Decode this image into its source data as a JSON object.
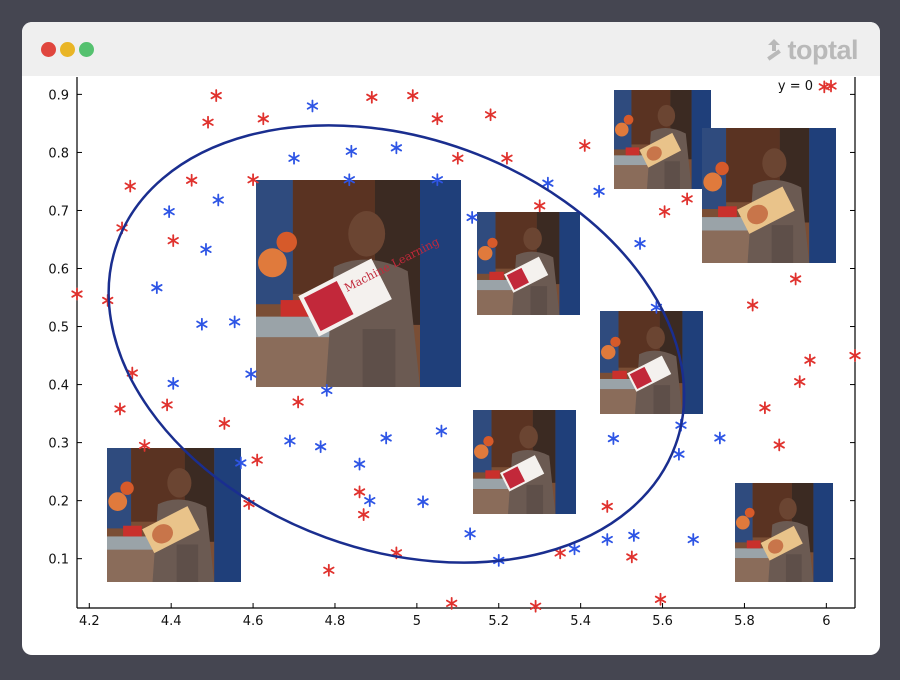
{
  "window": {
    "brand": "toptal",
    "brand_icon": "toptal-logo-icon",
    "traffic_lights": [
      {
        "name": "close-dot",
        "color": "#e0463e"
      },
      {
        "name": "minimize-dot",
        "color": "#e9b526"
      },
      {
        "name": "maximize-dot",
        "color": "#55c16f"
      }
    ]
  },
  "chart_data": {
    "type": "scatter",
    "xlim": [
      4.17,
      6.07
    ],
    "ylim": [
      0.015,
      0.93
    ],
    "xticks": [
      "4.2",
      "4.4",
      "4.6",
      "4.8",
      "5",
      "5.2",
      "5.4",
      "5.6",
      "5.8",
      "6"
    ],
    "xtick_values": [
      4.2,
      4.4,
      4.6,
      4.8,
      5.0,
      5.2,
      5.4,
      5.6,
      5.8,
      6.0
    ],
    "yticks": [
      "0.1",
      "0.2",
      "0.3",
      "0.4",
      "0.5",
      "0.6",
      "0.7",
      "0.8",
      "0.9"
    ],
    "ytick_values": [
      0.1,
      0.2,
      0.3,
      0.4,
      0.5,
      0.6,
      0.7,
      0.8,
      0.9
    ],
    "legend": {
      "label": "y = 0",
      "color": "#e0322e",
      "marker": "asterisk",
      "position": "top-right"
    },
    "grid": false,
    "series": [
      {
        "name": "y = 0",
        "color": "#e0322e",
        "marker": "asterisk",
        "points": [
          [
            4.17,
            0.556
          ],
          [
            4.245,
            0.545
          ],
          [
            4.275,
            0.358
          ],
          [
            4.28,
            0.67
          ],
          [
            4.3,
            0.742
          ],
          [
            4.305,
            0.42
          ],
          [
            4.335,
            0.295
          ],
          [
            4.39,
            0.365
          ],
          [
            4.405,
            0.648
          ],
          [
            4.45,
            0.752
          ],
          [
            4.49,
            0.852
          ],
          [
            4.51,
            0.898
          ],
          [
            4.53,
            0.333
          ],
          [
            4.59,
            0.195
          ],
          [
            4.6,
            0.753
          ],
          [
            4.61,
            0.27
          ],
          [
            4.625,
            0.858
          ],
          [
            4.71,
            0.37
          ],
          [
            4.785,
            0.08
          ],
          [
            4.86,
            0.215
          ],
          [
            4.87,
            0.176
          ],
          [
            4.89,
            0.895
          ],
          [
            4.95,
            0.11
          ],
          [
            4.99,
            0.898
          ],
          [
            5.05,
            0.858
          ],
          [
            5.085,
            0.023
          ],
          [
            5.1,
            0.79
          ],
          [
            5.18,
            0.865
          ],
          [
            5.22,
            0.79
          ],
          [
            5.29,
            0.018
          ],
          [
            5.3,
            0.708
          ],
          [
            5.35,
            0.11
          ],
          [
            5.41,
            0.812
          ],
          [
            5.465,
            0.19
          ],
          [
            5.525,
            0.103
          ],
          [
            5.595,
            0.03
          ],
          [
            5.605,
            0.698
          ],
          [
            5.66,
            0.72
          ],
          [
            5.82,
            0.537
          ],
          [
            5.85,
            0.36
          ],
          [
            5.885,
            0.296
          ],
          [
            5.925,
            0.582
          ],
          [
            5.935,
            0.405
          ],
          [
            5.96,
            0.442
          ],
          [
            6.07,
            0.45
          ],
          [
            5.995,
            0.913
          ]
        ]
      },
      {
        "name": "",
        "color": "#2e55e5",
        "marker": "asterisk",
        "points": [
          [
            4.365,
            0.567
          ],
          [
            4.395,
            0.698
          ],
          [
            4.405,
            0.402
          ],
          [
            4.475,
            0.504
          ],
          [
            4.485,
            0.633
          ],
          [
            4.515,
            0.718
          ],
          [
            4.555,
            0.508
          ],
          [
            4.57,
            0.265
          ],
          [
            4.595,
            0.418
          ],
          [
            4.69,
            0.303
          ],
          [
            4.7,
            0.79
          ],
          [
            4.745,
            0.88
          ],
          [
            4.765,
            0.293
          ],
          [
            4.78,
            0.39
          ],
          [
            4.835,
            0.753
          ],
          [
            4.84,
            0.802
          ],
          [
            4.86,
            0.263
          ],
          [
            4.885,
            0.2
          ],
          [
            4.925,
            0.308
          ],
          [
            4.95,
            0.808
          ],
          [
            5.015,
            0.198
          ],
          [
            5.05,
            0.753
          ],
          [
            5.06,
            0.32
          ],
          [
            5.13,
            0.143
          ],
          [
            5.135,
            0.688
          ],
          [
            5.2,
            0.097
          ],
          [
            5.32,
            0.747
          ],
          [
            5.385,
            0.117
          ],
          [
            5.445,
            0.733
          ],
          [
            5.465,
            0.133
          ],
          [
            5.48,
            0.307
          ],
          [
            5.53,
            0.14
          ],
          [
            5.545,
            0.643
          ],
          [
            5.585,
            0.533
          ],
          [
            5.64,
            0.28
          ],
          [
            5.645,
            0.33
          ],
          [
            5.675,
            0.133
          ],
          [
            5.74,
            0.308
          ]
        ]
      }
    ],
    "boundary": {
      "shape": "ellipse",
      "color": "#1a2e8f",
      "center": [
        4.95,
        0.47
      ],
      "rx": 0.725,
      "ry": 0.355,
      "rotation_deg": 20
    }
  },
  "photos": {
    "caption": "Machine Learning"
  }
}
